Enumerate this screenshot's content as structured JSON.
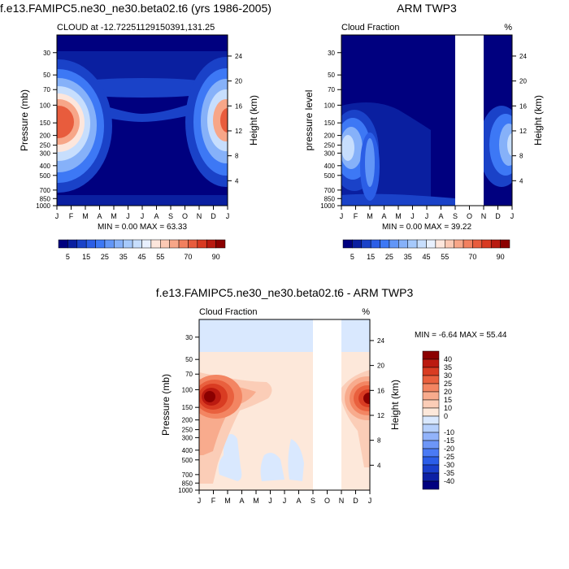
{
  "colors": {
    "pos": [
      "#00007f",
      "#0a1fa0",
      "#1a42c8",
      "#2b5ee6",
      "#3d78f5",
      "#6296f7",
      "#86b1f9",
      "#a6c9fb",
      "#c7defd",
      "#e8f0fe",
      "#fde6dc",
      "#fbc9b4",
      "#f7a688",
      "#f2805f",
      "#e85c3d",
      "#d83a22",
      "#b81a10",
      "#8b0000"
    ],
    "diff": [
      "#00007f",
      "#0c20a5",
      "#1a3fcc",
      "#2b5de8",
      "#4a7af5",
      "#6d96f7",
      "#92b3fa",
      "#b6d0fc",
      "#d9e8fe",
      "#fde8da",
      "#fbcdb7",
      "#f8ab8d",
      "#f38562",
      "#e9603e",
      "#d93c22",
      "#bb1a10",
      "#8b0000"
    ]
  },
  "panels": [
    {
      "title": "f.e13.FAMIPC5.ne30_ne30.beta02.t6 (yrs 1986-2005)",
      "left_label": "CLOUD at -12.72251129150391,131.25",
      "right_label": "",
      "ylabel": "Pressure (mb)",
      "y2label": "Height (km)",
      "minmax": "MIN =   0.00 MAX =  63.33",
      "colorbar_ticks": [
        "5",
        "15",
        "25",
        "35",
        "45",
        "55",
        "70",
        "90"
      ]
    },
    {
      "title": "ARM TWP3",
      "left_label": "Cloud Fraction",
      "right_label": "%",
      "ylabel": "pressure level",
      "y2label": "Height (km)",
      "minmax": "MIN =   0.00 MAX =  39.22",
      "colorbar_ticks": [
        "5",
        "15",
        "25",
        "35",
        "45",
        "55",
        "70",
        "90"
      ]
    },
    {
      "title": "f.e13.FAMIPC5.ne30_ne30.beta02.t6 - ARM TWP3",
      "left_label": "Cloud Fraction",
      "right_label": "%",
      "ylabel": "Pressure (mb)",
      "y2label": "Height (km)",
      "minmax": "MIN =  -6.64 MAX =  55.44",
      "colorbar_ticks": [
        "40",
        "35",
        "30",
        "25",
        "20",
        "15",
        "10",
        "0",
        "-10",
        "-15",
        "-20",
        "-25",
        "-30",
        "-35",
        "-40"
      ]
    }
  ],
  "chart_data": [
    {
      "type": "heatmap",
      "title": "f.e13.FAMIPC5.ne30_ne30.beta02.t6 (yrs 1986-2005)",
      "subtitle": "CLOUD at -12.72251129150391,131.25",
      "x": [
        "J",
        "F",
        "M",
        "A",
        "M",
        "J",
        "J",
        "A",
        "S",
        "O",
        "N",
        "D",
        "J"
      ],
      "pressure_levels": [
        30,
        50,
        70,
        100,
        150,
        200,
        250,
        300,
        400,
        500,
        700,
        850,
        1000
      ],
      "height_ticks_km": [
        4,
        8,
        12,
        16,
        20,
        24
      ],
      "ylabel": "Pressure (mb)",
      "y2label": "Height (km)",
      "ylim": [
        1000,
        20
      ],
      "colorbar_levels": [
        0,
        5,
        10,
        15,
        20,
        25,
        30,
        35,
        40,
        45,
        50,
        55,
        60,
        70,
        80,
        90
      ],
      "min": 0.0,
      "max": 63.33
    },
    {
      "type": "heatmap",
      "title": "ARM TWP3",
      "subtitle": "Cloud Fraction",
      "units": "%",
      "x": [
        "J",
        "F",
        "M",
        "A",
        "M",
        "J",
        "J",
        "A",
        "S",
        "O",
        "N",
        "D",
        "J"
      ],
      "pressure_levels": [
        30,
        50,
        70,
        100,
        150,
        200,
        250,
        300,
        400,
        500,
        700,
        850,
        1000
      ],
      "height_ticks_km": [
        4,
        8,
        12,
        16,
        20,
        24
      ],
      "ylabel": "pressure level",
      "y2label": "Height (km)",
      "ylim": [
        1000,
        20
      ],
      "missing_months": [
        "O"
      ],
      "min": 0.0,
      "max": 39.22
    },
    {
      "type": "heatmap",
      "title": "f.e13.FAMIPC5.ne30_ne30.beta02.t6 - ARM TWP3",
      "subtitle": "Cloud Fraction",
      "units": "%",
      "x": [
        "J",
        "F",
        "M",
        "A",
        "M",
        "J",
        "J",
        "A",
        "S",
        "O",
        "N",
        "D",
        "J"
      ],
      "pressure_levels": [
        30,
        50,
        70,
        100,
        150,
        200,
        250,
        300,
        400,
        500,
        700,
        850,
        1000
      ],
      "height_ticks_km": [
        4,
        8,
        12,
        16,
        20,
        24
      ],
      "ylabel": "Pressure (mb)",
      "y2label": "Height (km)",
      "ylim": [
        1000,
        20
      ],
      "colorbar_levels": [
        -40,
        -35,
        -30,
        -25,
        -20,
        -15,
        -10,
        0,
        10,
        15,
        20,
        25,
        30,
        35,
        40
      ],
      "missing_months": [
        "O"
      ],
      "min": -6.64,
      "max": 55.44
    }
  ]
}
